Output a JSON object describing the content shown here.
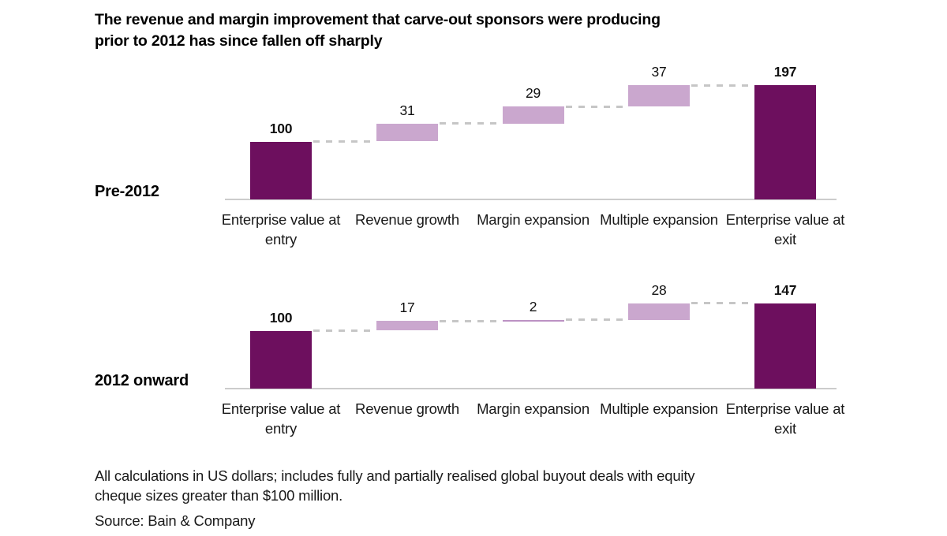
{
  "title": "The revenue and margin improvement that carve-out sponsors were producing\nprior to 2012 has since fallen off sharply",
  "footnote": "All calculations in US dollars; includes fully and partially realised global buyout deals with equity\ncheque sizes greater than $100 million.",
  "source": "Source: Bain & Company",
  "colors": {
    "total_bar": "#6D0F5E",
    "delta_bar": "#CAA7CE",
    "thin_delta_bar": "#BC92C4",
    "connector": "#C6C6C6",
    "axis_line": "#CCCCCC"
  },
  "chart_data": [
    {
      "type": "bar",
      "subtype": "waterfall",
      "group_label": "Pre-2012",
      "categories": [
        "Enterprise value at entry",
        "Revenue growth",
        "Margin expansion",
        "Multiple expansion",
        "Enterprise value at exit"
      ],
      "values": [
        100,
        31,
        29,
        37,
        197
      ],
      "bar_roles": [
        "total",
        "delta",
        "delta",
        "delta",
        "total"
      ],
      "cumulative_levels": [
        100,
        131,
        160,
        197,
        197
      ],
      "title": "",
      "xlabel": "",
      "ylabel": "",
      "grid": false,
      "legend": false
    },
    {
      "type": "bar",
      "subtype": "waterfall",
      "group_label": "2012 onward",
      "categories": [
        "Enterprise value at entry",
        "Revenue growth",
        "Margin expansion",
        "Multiple expansion",
        "Enterprise value at exit"
      ],
      "values": [
        100,
        17,
        2,
        28,
        147
      ],
      "bar_roles": [
        "total",
        "delta",
        "delta",
        "delta",
        "total"
      ],
      "cumulative_levels": [
        100,
        117,
        119,
        147,
        147
      ],
      "title": "",
      "xlabel": "",
      "ylabel": "",
      "grid": false,
      "legend": false
    }
  ]
}
